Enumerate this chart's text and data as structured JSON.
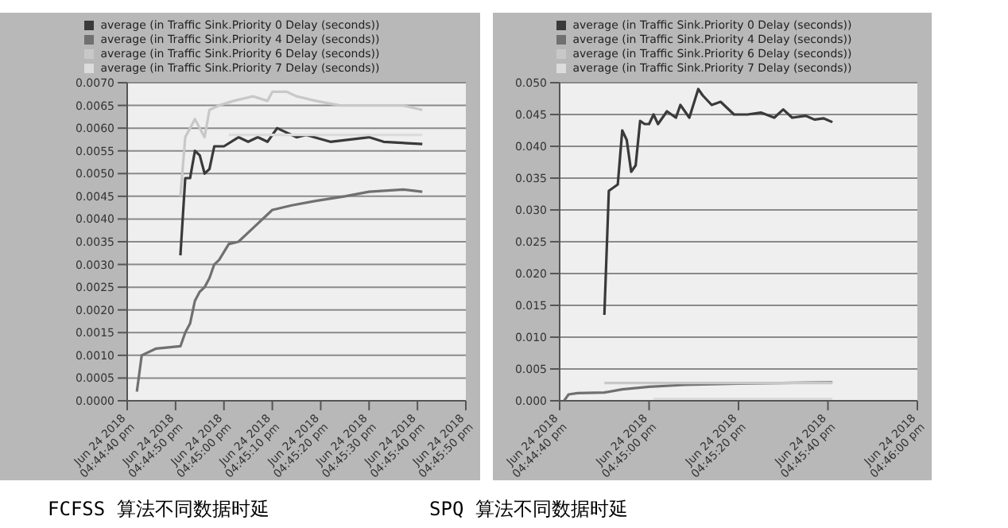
{
  "chart_data": [
    {
      "type": "line",
      "title": "FCFSS 算法不同数据时延",
      "legend": "top",
      "grid": "y",
      "marker": "none",
      "line_style": "solid",
      "xlim": [
        "2018-06-24T16:44:40",
        "2018-06-24T16:45:50"
      ],
      "xticks": [
        {
          "value": "2018-06-24T16:44:40",
          "label": "Jun 24 2018\n04:44:40 pm"
        },
        {
          "value": "2018-06-24T16:44:50",
          "label": "Jun 24 2018\n04:44:50 pm"
        },
        {
          "value": "2018-06-24T16:45:00",
          "label": "Jun 24 2018\n04:45:00 pm"
        },
        {
          "value": "2018-06-24T16:45:10",
          "label": "Jun 24 2018\n04:45:10 pm"
        },
        {
          "value": "2018-06-24T16:45:20",
          "label": "Jun 24 2018\n04:45:20 pm"
        },
        {
          "value": "2018-06-24T16:45:30",
          "label": "Jun 24 2018\n04:45:30 pm"
        },
        {
          "value": "2018-06-24T16:45:40",
          "label": "Jun 24 2018\n04:45:40 pm"
        },
        {
          "value": "2018-06-24T16:45:50",
          "label": "Jun 24 2018\n04:45:50 pm"
        }
      ],
      "ylim": [
        0,
        0.007
      ],
      "yticks": [
        {
          "value": 0,
          "label": "0.0000"
        },
        {
          "value": 0.0005,
          "label": "0.0005"
        },
        {
          "value": 0.001,
          "label": "0.0010"
        },
        {
          "value": 0.0015,
          "label": "0.0015"
        },
        {
          "value": 0.002,
          "label": "0.0020"
        },
        {
          "value": 0.0025,
          "label": "0.0025"
        },
        {
          "value": 0.003,
          "label": "0.0030"
        },
        {
          "value": 0.0035,
          "label": "0.0035"
        },
        {
          "value": 0.004,
          "label": "0.0040"
        },
        {
          "value": 0.0045,
          "label": "0.0045"
        },
        {
          "value": 0.005,
          "label": "0.0050"
        },
        {
          "value": 0.0055,
          "label": "0.0055"
        },
        {
          "value": 0.006,
          "label": "0.0060"
        },
        {
          "value": 0.0065,
          "label": "0.0065"
        },
        {
          "value": 0.007,
          "label": "0.0070"
        }
      ],
      "series": [
        {
          "name": "average (in Traffic Sink.Priority 0 Delay (seconds))",
          "color": "#3a3a3a",
          "x": [
            "2018-06-24T16:44:51",
            "2018-06-24T16:44:52",
            "2018-06-24T16:44:53",
            "2018-06-24T16:44:54",
            "2018-06-24T16:44:55",
            "2018-06-24T16:44:56",
            "2018-06-24T16:44:57",
            "2018-06-24T16:44:58",
            "2018-06-24T16:45:00",
            "2018-06-24T16:45:03",
            "2018-06-24T16:45:05",
            "2018-06-24T16:45:07",
            "2018-06-24T16:45:09",
            "2018-06-24T16:45:11",
            "2018-06-24T16:45:13",
            "2018-06-24T16:45:15",
            "2018-06-24T16:45:17",
            "2018-06-24T16:45:22",
            "2018-06-24T16:45:30",
            "2018-06-24T16:45:33",
            "2018-06-24T16:45:41"
          ],
          "values": [
            0.0032,
            0.0049,
            0.0049,
            0.0055,
            0.0054,
            0.005,
            0.0051,
            0.0056,
            0.0056,
            0.0058,
            0.0057,
            0.0058,
            0.0057,
            0.006,
            0.0059,
            0.0058,
            0.00585,
            0.0057,
            0.0058,
            0.0057,
            0.00565
          ]
        },
        {
          "name": "average (in Traffic Sink.Priority 4 Delay (seconds))",
          "color": "#707070",
          "x": [
            "2018-06-24T16:44:42",
            "2018-06-24T16:44:43",
            "2018-06-24T16:44:46",
            "2018-06-24T16:44:51",
            "2018-06-24T16:44:52",
            "2018-06-24T16:44:53",
            "2018-06-24T16:44:54",
            "2018-06-24T16:44:55",
            "2018-06-24T16:44:56",
            "2018-06-24T16:44:57",
            "2018-06-24T16:44:58",
            "2018-06-24T16:44:59",
            "2018-06-24T16:45:01",
            "2018-06-24T16:45:03",
            "2018-06-24T16:45:06",
            "2018-06-24T16:45:10",
            "2018-06-24T16:45:14",
            "2018-06-24T16:45:19",
            "2018-06-24T16:45:25",
            "2018-06-24T16:45:30",
            "2018-06-24T16:45:37",
            "2018-06-24T16:45:41"
          ],
          "values": [
            0.0002,
            0.001,
            0.00115,
            0.0012,
            0.0015,
            0.0017,
            0.0022,
            0.0024,
            0.0025,
            0.0027,
            0.003,
            0.0031,
            0.00345,
            0.0035,
            0.0038,
            0.0042,
            0.0043,
            0.0044,
            0.0045,
            0.0046,
            0.00465,
            0.0046
          ]
        },
        {
          "name": "average (in Traffic Sink.Priority 6 Delay (seconds))",
          "color": "#c8c8c8",
          "x": [
            "2018-06-24T16:44:51",
            "2018-06-24T16:44:52",
            "2018-06-24T16:44:54",
            "2018-06-24T16:44:55",
            "2018-06-24T16:44:56",
            "2018-06-24T16:44:57",
            "2018-06-24T16:44:59",
            "2018-06-24T16:45:02",
            "2018-06-24T16:45:06",
            "2018-06-24T16:45:09",
            "2018-06-24T16:45:10",
            "2018-06-24T16:45:13",
            "2018-06-24T16:45:15",
            "2018-06-24T16:45:19",
            "2018-06-24T16:45:24",
            "2018-06-24T16:45:30",
            "2018-06-24T16:45:37",
            "2018-06-24T16:45:41"
          ],
          "values": [
            0.0045,
            0.0058,
            0.0062,
            0.006,
            0.0058,
            0.0064,
            0.0065,
            0.0066,
            0.0067,
            0.0066,
            0.0068,
            0.0068,
            0.0067,
            0.0066,
            0.0065,
            0.0065,
            0.0065,
            0.0064
          ]
        },
        {
          "name": "average (in Traffic Sink.Priority 7 Delay (seconds))",
          "color": "#dcdcdc",
          "x": [
            "2018-06-24T16:45:01",
            "2018-06-24T16:45:41"
          ],
          "values": [
            0.00585,
            0.00585
          ]
        }
      ]
    },
    {
      "type": "line",
      "title": "SPQ 算法不同数据时延",
      "legend": "top",
      "grid": "y",
      "marker": "none",
      "line_style": "solid",
      "xlim": [
        "2018-06-24T16:44:40",
        "2018-06-24T16:46:00"
      ],
      "xticks": [
        {
          "value": "2018-06-24T16:44:40",
          "label": "Jun 24 2018\n04:44:40 pm"
        },
        {
          "value": "2018-06-24T16:45:00",
          "label": "Jun 24 2018\n04:45:00 pm"
        },
        {
          "value": "2018-06-24T16:45:20",
          "label": "Jun 24 2018\n04:45:20 pm"
        },
        {
          "value": "2018-06-24T16:45:40",
          "label": "Jun 24 2018\n04:45:40 pm"
        },
        {
          "value": "2018-06-24T16:46:00",
          "label": "Jun 24 2018\n04:46:00 pm"
        }
      ],
      "ylim": [
        0,
        0.05
      ],
      "yticks": [
        {
          "value": 0,
          "label": "0.000"
        },
        {
          "value": 0.005,
          "label": "0.005"
        },
        {
          "value": 0.01,
          "label": "0.010"
        },
        {
          "value": 0.015,
          "label": "0.015"
        },
        {
          "value": 0.02,
          "label": "0.020"
        },
        {
          "value": 0.025,
          "label": "0.025"
        },
        {
          "value": 0.03,
          "label": "0.030"
        },
        {
          "value": 0.035,
          "label": "0.035"
        },
        {
          "value": 0.04,
          "label": "0.040"
        },
        {
          "value": 0.045,
          "label": "0.045"
        },
        {
          "value": 0.05,
          "label": "0.050"
        }
      ],
      "series": [
        {
          "name": "average (in Traffic Sink.Priority 0 Delay (seconds))",
          "color": "#3a3a3a",
          "x": [
            "2018-06-24T16:44:50",
            "2018-06-24T16:44:51",
            "2018-06-24T16:44:53",
            "2018-06-24T16:44:54",
            "2018-06-24T16:44:55",
            "2018-06-24T16:44:56",
            "2018-06-24T16:44:57",
            "2018-06-24T16:44:58",
            "2018-06-24T16:44:59",
            "2018-06-24T16:45:00",
            "2018-06-24T16:45:01",
            "2018-06-24T16:45:02",
            "2018-06-24T16:45:04",
            "2018-06-24T16:45:06",
            "2018-06-24T16:45:07",
            "2018-06-24T16:45:09",
            "2018-06-24T16:45:11",
            "2018-06-24T16:45:12",
            "2018-06-24T16:45:14",
            "2018-06-24T16:45:16",
            "2018-06-24T16:45:19",
            "2018-06-24T16:45:22",
            "2018-06-24T16:45:25",
            "2018-06-24T16:45:28",
            "2018-06-24T16:45:30",
            "2018-06-24T16:45:32",
            "2018-06-24T16:45:35",
            "2018-06-24T16:45:37",
            "2018-06-24T16:45:39",
            "2018-06-24T16:45:41"
          ],
          "values": [
            0.0135,
            0.033,
            0.034,
            0.0425,
            0.041,
            0.036,
            0.037,
            0.044,
            0.0435,
            0.0435,
            0.045,
            0.0435,
            0.0455,
            0.0445,
            0.0465,
            0.0445,
            0.049,
            0.048,
            0.0465,
            0.047,
            0.045,
            0.045,
            0.0453,
            0.0445,
            0.0458,
            0.0445,
            0.0448,
            0.0442,
            0.0444,
            0.0438
          ]
        },
        {
          "name": "average (in Traffic Sink.Priority 4 Delay (seconds))",
          "color": "#707070",
          "x": [
            "2018-06-24T16:44:41",
            "2018-06-24T16:44:42",
            "2018-06-24T16:44:44",
            "2018-06-24T16:44:50",
            "2018-06-24T16:44:54",
            "2018-06-24T16:45:00",
            "2018-06-24T16:45:08",
            "2018-06-24T16:45:20",
            "2018-06-24T16:45:41"
          ],
          "values": [
            0,
            0.001,
            0.0012,
            0.0013,
            0.0018,
            0.0022,
            0.0025,
            0.0027,
            0.0029
          ]
        },
        {
          "name": "average (in Traffic Sink.Priority 6 Delay (seconds))",
          "color": "#c8c8c8",
          "x": [
            "2018-06-24T16:44:50",
            "2018-06-24T16:45:41"
          ],
          "values": [
            0.0028,
            0.0028
          ]
        },
        {
          "name": "average (in Traffic Sink.Priority 7 Delay (seconds))",
          "color": "#dcdcdc",
          "x": [
            "2018-06-24T16:45:01",
            "2018-06-24T16:45:41"
          ],
          "values": [
            0.0003,
            0.0003
          ]
        }
      ]
    }
  ]
}
